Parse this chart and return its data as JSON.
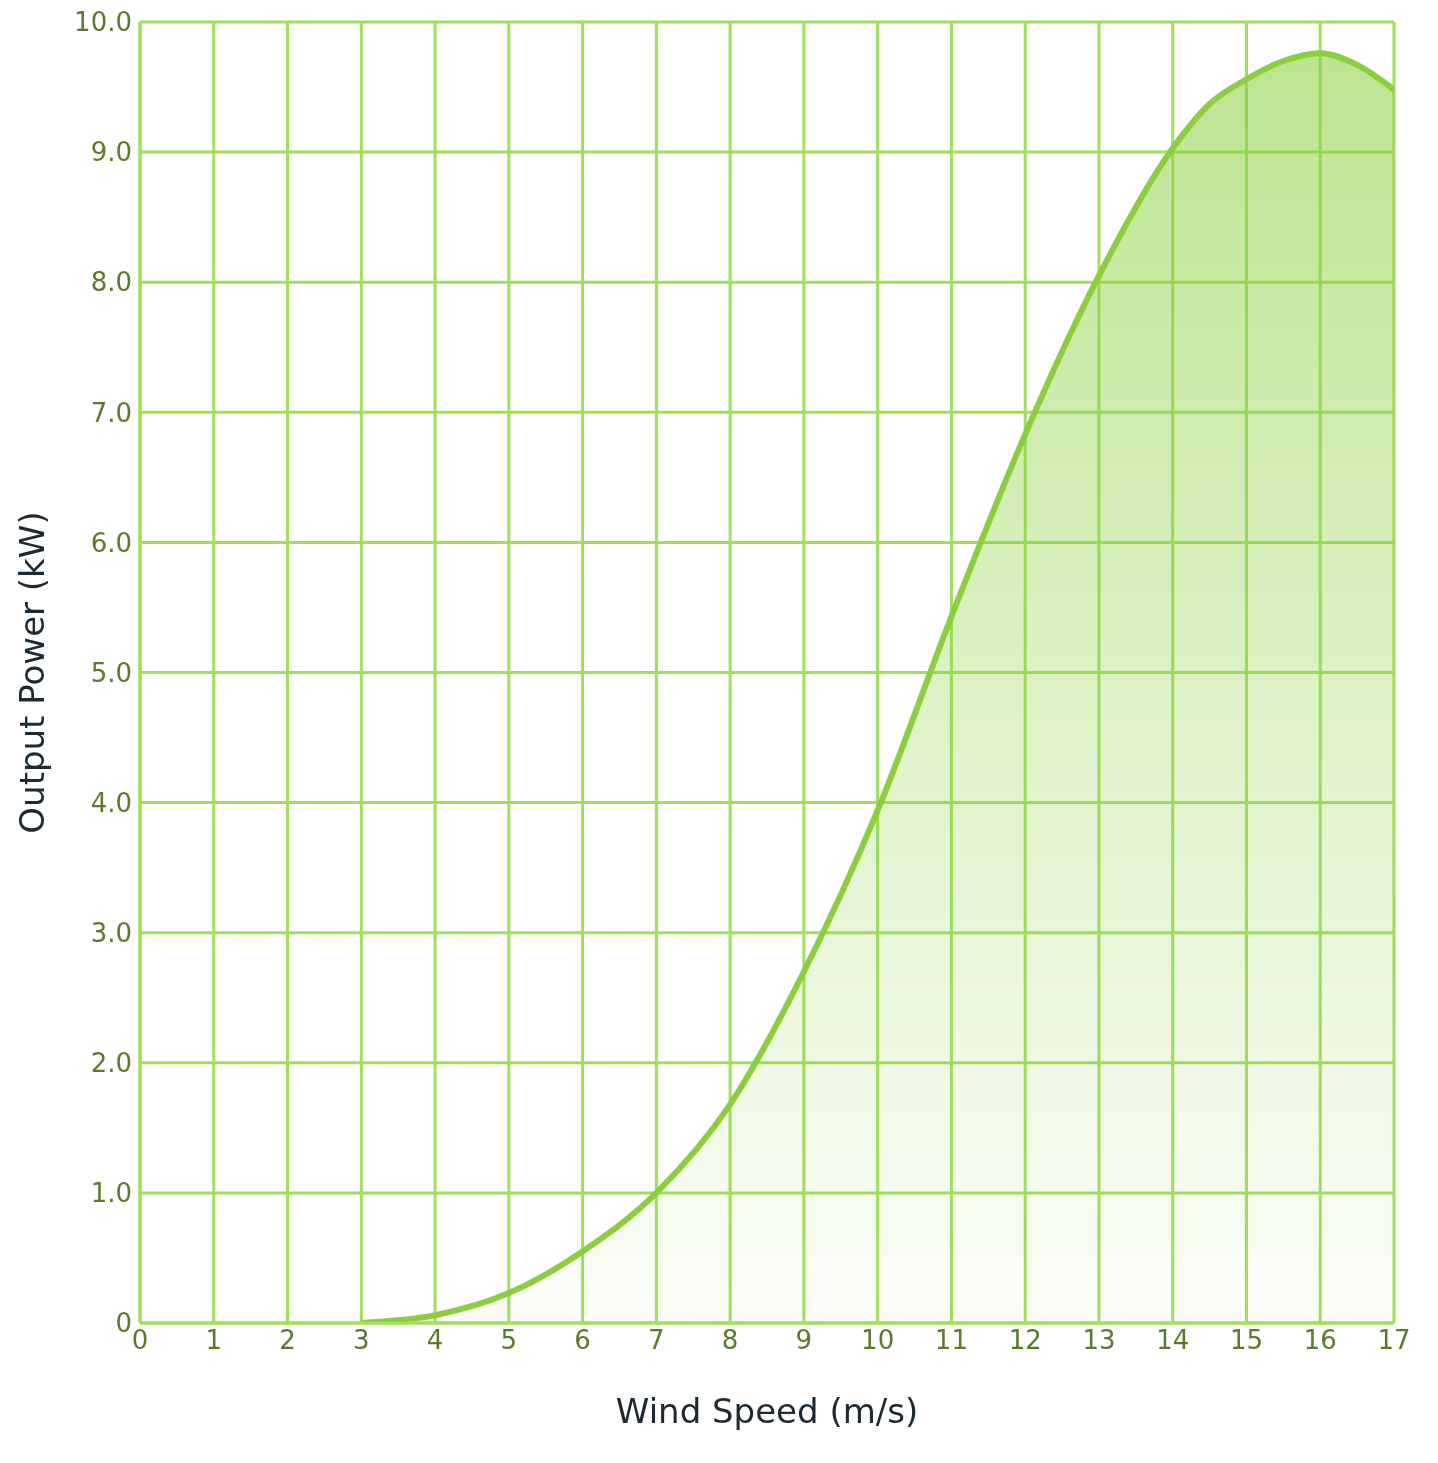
{
  "chart_data": {
    "type": "area",
    "xlabel": "Wind Speed (m/s)",
    "ylabel": "Output Power (kW)",
    "x": [
      3,
      4,
      5,
      6,
      7,
      8,
      9,
      10,
      11,
      12,
      13,
      14,
      14.5,
      15,
      15.5,
      16,
      16.5,
      17
    ],
    "series": [
      {
        "color": "#8ccf3e",
        "values": [
          0,
          0.06,
          0.23,
          0.55,
          1.0,
          1.68,
          2.7,
          3.94,
          5.43,
          6.83,
          8.05,
          9.03,
          9.37,
          9.56,
          9.7,
          9.76,
          9.67,
          9.48
        ]
      }
    ],
    "xlim": [
      0,
      17
    ],
    "xticks": [
      0,
      1,
      2,
      3,
      4,
      5,
      6,
      7,
      8,
      9,
      10,
      11,
      12,
      13,
      14,
      15,
      16,
      17
    ],
    "ylim": [
      0,
      10
    ],
    "yticks": [
      0,
      {
        "value": 1,
        "label": "1.0"
      },
      {
        "value": 2,
        "label": "2.0"
      },
      {
        "value": 3,
        "label": "3.0"
      },
      {
        "value": 4,
        "label": "4.0"
      },
      {
        "value": 5,
        "label": "5.0"
      },
      {
        "value": 6,
        "label": "6.0"
      },
      {
        "value": 7,
        "label": "7.0"
      },
      {
        "value": 8,
        "label": "8.0"
      },
      {
        "value": 9,
        "label": "9.0"
      },
      {
        "value": 10,
        "label": "10.0"
      }
    ],
    "grid": true,
    "legend": false
  }
}
